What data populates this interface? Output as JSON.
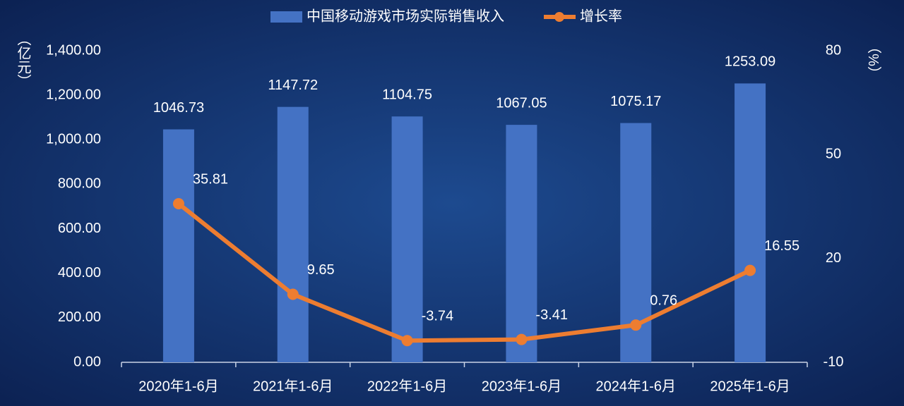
{
  "chart_data": {
    "type": "bar_line",
    "categories": [
      "2020年1-6月",
      "2021年1-6月",
      "2022年1-6月",
      "2023年1-6月",
      "2024年1-6月",
      "2025年1-6月"
    ],
    "series": [
      {
        "name": "中国移动游戏市场实际销售收入",
        "type": "bar",
        "color": "#4472c4",
        "axis": "y",
        "values": [
          1046.73,
          1147.72,
          1104.75,
          1067.05,
          1075.17,
          1253.09
        ]
      },
      {
        "name": "增长率",
        "type": "line",
        "color": "#ed7d31",
        "axis": "y2",
        "values": [
          35.81,
          9.65,
          -3.74,
          -3.41,
          0.76,
          16.55
        ]
      }
    ],
    "ylabel": "（亿元）",
    "y2label": "（%）",
    "ylim": [
      0,
      1400
    ],
    "yticks": [
      {
        "value": 0,
        "label": "0.00"
      },
      {
        "value": 200,
        "label": "200.00"
      },
      {
        "value": 400,
        "label": "400.00"
      },
      {
        "value": 600,
        "label": "600.00"
      },
      {
        "value": 800,
        "label": "800.00"
      },
      {
        "value": 1000,
        "label": "1,000.00"
      },
      {
        "value": 1200,
        "label": "1,200.00"
      },
      {
        "value": 1400,
        "label": "1,400.00"
      }
    ],
    "y2lim": [
      -10,
      80
    ],
    "y2ticks": [
      -10,
      20,
      50,
      80
    ],
    "grid": false,
    "legend": "top"
  }
}
